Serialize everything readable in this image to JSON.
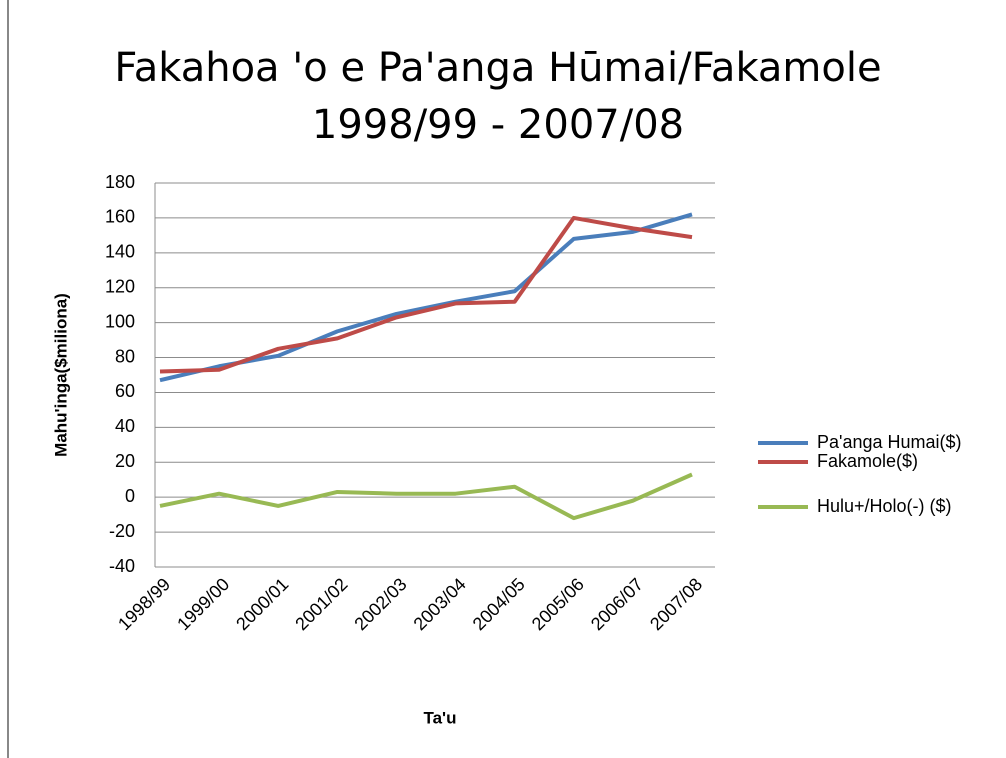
{
  "chart_data": {
    "type": "line",
    "title": [
      "Fakahoa 'o e Pa'anga Hūmai/Fakamole",
      "1998/99 - 2007/08"
    ],
    "x_label": "Ta'u",
    "y_label": "Mahu'inga($miliona)",
    "categories": [
      "1998/99",
      "1999/00",
      "2000/01",
      "2001/02",
      "2002/03",
      "2003/04",
      "2004/05",
      "2005/06",
      "2006/07",
      "2007/08"
    ],
    "series": [
      {
        "name": "Pa'anga Humai($)",
        "color": "#4a7ebb",
        "values": [
          67,
          75,
          81,
          95,
          105,
          112,
          118,
          148,
          152,
          162
        ]
      },
      {
        "name": "Fakamole($)",
        "color": "#be4b48",
        "values": [
          72,
          73,
          85,
          91,
          103,
          111,
          112,
          160,
          154,
          149
        ]
      },
      {
        "name": "Hulu+/Holo(-) ($)",
        "color": "#98b954",
        "values": [
          -5,
          2,
          -5,
          3,
          2,
          2,
          6,
          -12,
          -2,
          13
        ]
      }
    ],
    "ylim": [
      -40,
      180
    ],
    "yticks": [
      -40,
      -20,
      0,
      20,
      40,
      60,
      80,
      100,
      120,
      140,
      160,
      180
    ],
    "grid": true,
    "legend": "right"
  }
}
